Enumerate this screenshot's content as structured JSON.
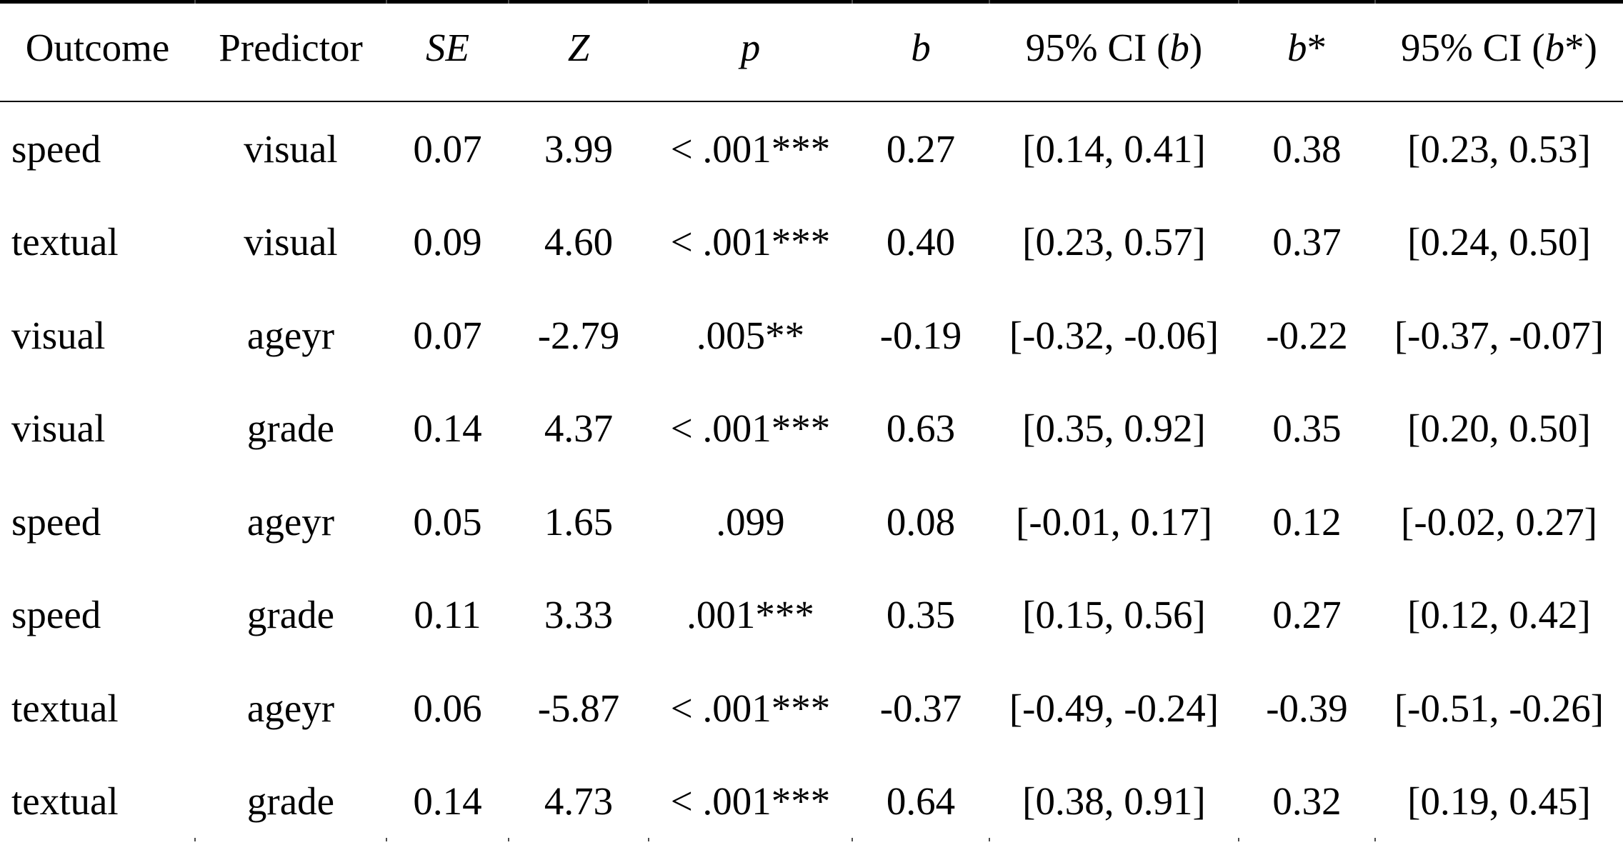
{
  "page": {
    "background_color": "#ffffff",
    "text_color": "#000000",
    "rule_color": "#000000"
  },
  "table": {
    "columns": [
      {
        "key": "outcome",
        "segments": [
          {
            "t": "Outcome"
          }
        ]
      },
      {
        "key": "predictor",
        "segments": [
          {
            "t": "Predictor"
          }
        ]
      },
      {
        "key": "se",
        "segments": [
          {
            "t": "SE",
            "i": true
          }
        ]
      },
      {
        "key": "z",
        "segments": [
          {
            "t": "Z",
            "i": true
          }
        ]
      },
      {
        "key": "p",
        "segments": [
          {
            "t": "p",
            "i": true
          }
        ]
      },
      {
        "key": "b",
        "segments": [
          {
            "t": "b",
            "i": true
          }
        ]
      },
      {
        "key": "ci_b",
        "segments": [
          {
            "t": "95% CI ("
          },
          {
            "t": "b",
            "i": true
          },
          {
            "t": ")"
          }
        ]
      },
      {
        "key": "b_star",
        "segments": [
          {
            "t": "b",
            "i": true
          },
          {
            "t": "*"
          }
        ]
      },
      {
        "key": "ci_b_star",
        "segments": [
          {
            "t": "95% CI ("
          },
          {
            "t": "b",
            "i": true
          },
          {
            "t": "*)"
          }
        ]
      }
    ],
    "rows": [
      [
        "speed",
        "visual",
        "0.07",
        "3.99",
        "< .001***",
        "0.27",
        "[0.14, 0.41]",
        "0.38",
        "[0.23, 0.53]"
      ],
      [
        "textual",
        "visual",
        "0.09",
        "4.60",
        "< .001***",
        "0.40",
        "[0.23, 0.57]",
        "0.37",
        "[0.24, 0.50]"
      ],
      [
        "visual",
        "ageyr",
        "0.07",
        "-2.79",
        ".005**",
        "-0.19",
        "[-0.32, -0.06]",
        "-0.22",
        "[-0.37, -0.07]"
      ],
      [
        "visual",
        "grade",
        "0.14",
        "4.37",
        "< .001***",
        "0.63",
        "[0.35, 0.92]",
        "0.35",
        "[0.20, 0.50]"
      ],
      [
        "speed",
        "ageyr",
        "0.05",
        "1.65",
        ".099",
        "0.08",
        "[-0.01, 0.17]",
        "0.12",
        "[-0.02, 0.27]"
      ],
      [
        "speed",
        "grade",
        "0.11",
        "3.33",
        ".001***",
        "0.35",
        "[0.15, 0.56]",
        "0.27",
        "[0.12, 0.42]"
      ],
      [
        "textual",
        "ageyr",
        "0.06",
        "-5.87",
        "< .001***",
        "-0.37",
        "[-0.49, -0.24]",
        "-0.39",
        "[-0.51, -0.26]"
      ],
      [
        "textual",
        "grade",
        "0.14",
        "4.73",
        "< .001***",
        "0.64",
        "[0.38, 0.91]",
        "0.32",
        "[0.19, 0.45]"
      ]
    ]
  }
}
